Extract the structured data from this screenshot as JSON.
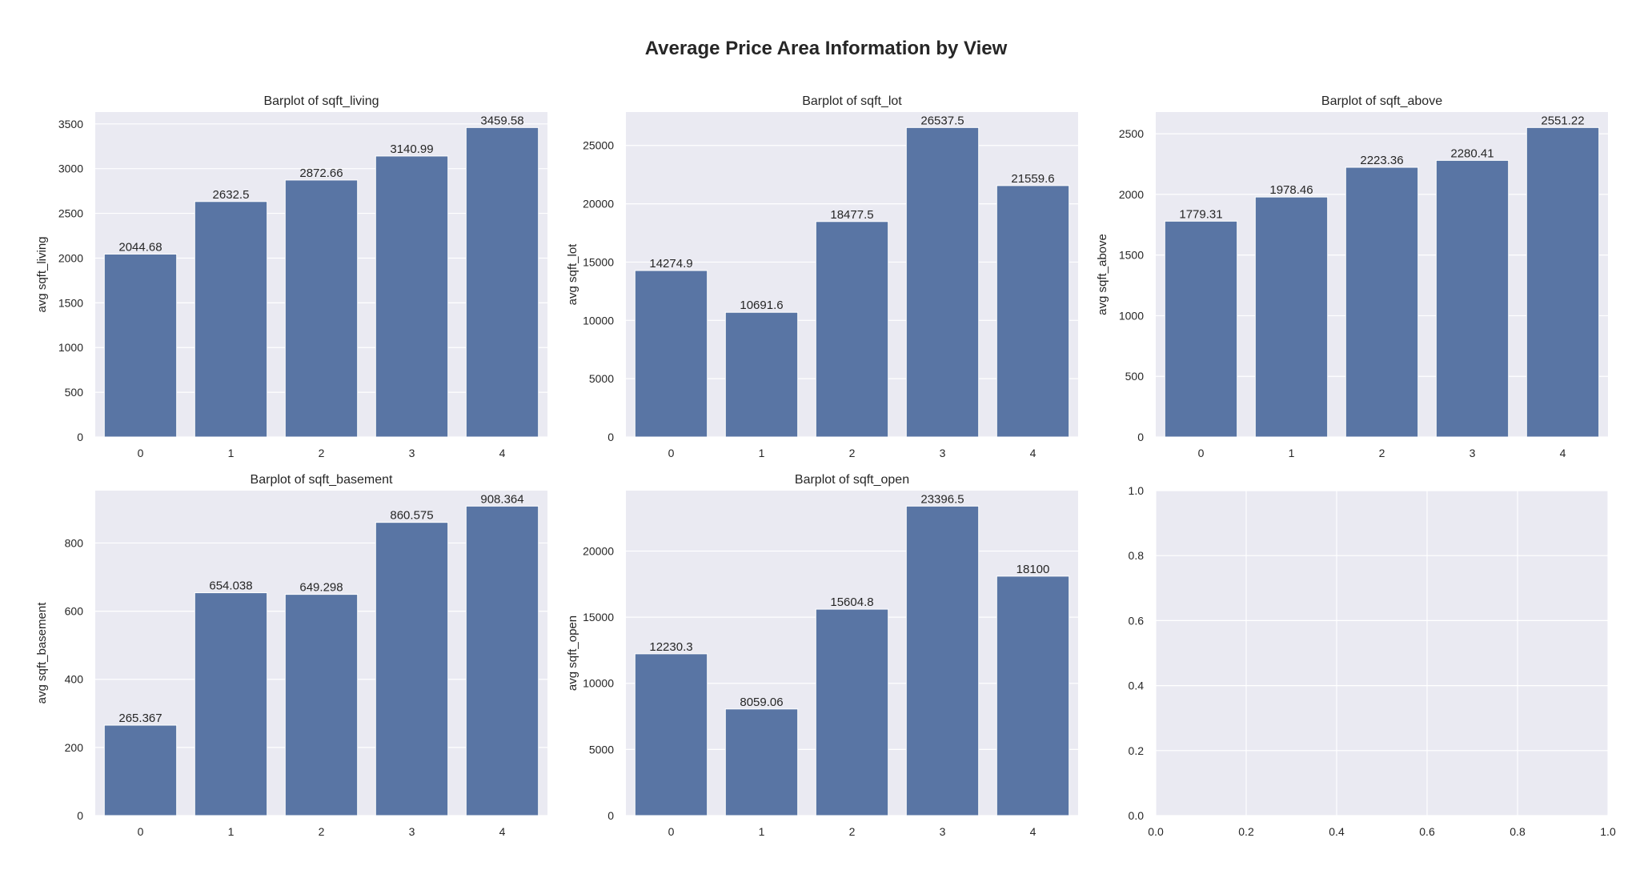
{
  "figure": {
    "title": "Average Price Area Information by View"
  },
  "colors": {
    "bar": "#5975a4",
    "panel_bg": "#eaeaf2",
    "grid": "#ffffff",
    "text": "#262626"
  },
  "chart_data": [
    {
      "type": "bar",
      "title": "Barplot of sqft_living",
      "xlabel": "",
      "ylabel": "avg sqft_living",
      "categories": [
        "0",
        "1",
        "2",
        "3",
        "4"
      ],
      "values": [
        2044.68,
        2632.5,
        2872.66,
        3140.99,
        3459.58
      ],
      "labels": [
        "2044.68",
        "2632.5",
        "2872.66",
        "3140.99",
        "3459.58"
      ],
      "ylim": [
        0,
        3632.56
      ],
      "yticks": [
        0,
        500,
        1000,
        1500,
        2000,
        2500,
        3000,
        3500
      ],
      "grid": true
    },
    {
      "type": "bar",
      "title": "Barplot of sqft_lot",
      "xlabel": "",
      "ylabel": "avg sqft_lot",
      "categories": [
        "0",
        "1",
        "2",
        "3",
        "4"
      ],
      "values": [
        14274.9,
        10691.6,
        18477.5,
        26537.5,
        21559.6
      ],
      "labels": [
        "14274.9",
        "10691.6",
        "18477.5",
        "26537.5",
        "21559.6"
      ],
      "ylim": [
        0,
        27864.4
      ],
      "yticks": [
        0,
        5000,
        10000,
        15000,
        20000,
        25000
      ],
      "grid": true
    },
    {
      "type": "bar",
      "title": "Barplot of sqft_above",
      "xlabel": "",
      "ylabel": "avg sqft_above",
      "categories": [
        "0",
        "1",
        "2",
        "3",
        "4"
      ],
      "values": [
        1779.31,
        1978.46,
        2223.36,
        2280.41,
        2551.22
      ],
      "labels": [
        "1779.31",
        "1978.46",
        "2223.36",
        "2280.41",
        "2551.22"
      ],
      "ylim": [
        0,
        2678.78
      ],
      "yticks": [
        0,
        500,
        1000,
        1500,
        2000,
        2500
      ],
      "grid": true
    },
    {
      "type": "bar",
      "title": "Barplot of sqft_basement",
      "xlabel": "",
      "ylabel": "avg sqft_basement",
      "categories": [
        "0",
        "1",
        "2",
        "3",
        "4"
      ],
      "values": [
        265.367,
        654.038,
        649.298,
        860.575,
        908.364
      ],
      "labels": [
        "265.367",
        "654.038",
        "649.298",
        "860.575",
        "908.364"
      ],
      "ylim": [
        0,
        953.78
      ],
      "yticks": [
        0,
        200,
        400,
        600,
        800
      ],
      "grid": true
    },
    {
      "type": "bar",
      "title": "Barplot of sqft_open",
      "xlabel": "",
      "ylabel": "avg sqft_open",
      "categories": [
        "0",
        "1",
        "2",
        "3",
        "4"
      ],
      "values": [
        12230.3,
        8059.06,
        15604.8,
        23396.5,
        18100
      ],
      "labels": [
        "12230.3",
        "8059.06",
        "15604.8",
        "23396.5",
        "18100"
      ],
      "ylim": [
        0,
        24566.3
      ],
      "yticks": [
        0,
        5000,
        10000,
        15000,
        20000
      ],
      "grid": true
    },
    {
      "type": "empty",
      "title": "",
      "xlim": [
        0,
        1
      ],
      "ylim": [
        0,
        1
      ],
      "xticks": [
        0.0,
        0.2,
        0.4,
        0.6,
        0.8,
        1.0
      ],
      "yticks": [
        0.0,
        0.2,
        0.4,
        0.6,
        0.8,
        1.0
      ],
      "xtick_labels": [
        "0.0",
        "0.2",
        "0.4",
        "0.6",
        "0.8",
        "1.0"
      ],
      "ytick_labels": [
        "0.0",
        "0.2",
        "0.4",
        "0.6",
        "0.8",
        "1.0"
      ],
      "grid": true
    }
  ]
}
